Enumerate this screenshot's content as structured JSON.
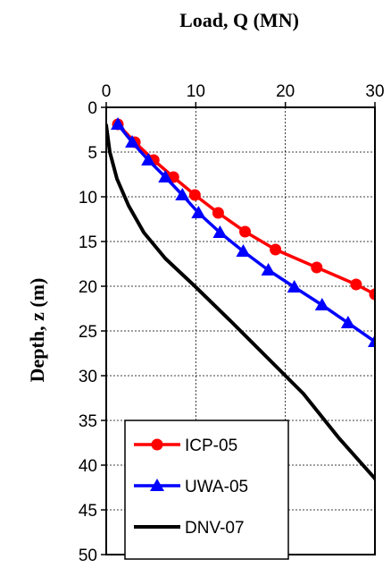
{
  "chart_data": {
    "type": "line",
    "title": "Load, Q (MN)",
    "xlabel": "",
    "ylabel": "Depth, z (m)",
    "x_axis_position": "top",
    "y_axis_reversed": true,
    "xlim": [
      0,
      30
    ],
    "ylim": [
      0,
      50
    ],
    "x_ticks": [
      0,
      10,
      20,
      30
    ],
    "y_ticks": [
      0,
      5,
      10,
      15,
      20,
      25,
      30,
      35,
      40,
      45,
      50
    ],
    "grid": true,
    "legend_position": "bottom-left",
    "series": [
      {
        "name": "ICP-05",
        "color": "#ff0000",
        "marker": "circle",
        "points": [
          [
            1.3,
            1.9
          ],
          [
            3.2,
            3.9
          ],
          [
            5.3,
            5.9
          ],
          [
            7.5,
            7.8
          ],
          [
            9.9,
            9.8
          ],
          [
            12.5,
            11.8
          ],
          [
            15.5,
            13.9
          ],
          [
            18.9,
            15.9
          ],
          [
            23.5,
            17.9
          ],
          [
            27.9,
            19.8
          ],
          [
            30.0,
            20.9
          ]
        ]
      },
      {
        "name": "UWA-05",
        "color": "#0000ff",
        "marker": "triangle",
        "points": [
          [
            1.3,
            1.9
          ],
          [
            2.9,
            3.9
          ],
          [
            4.7,
            5.9
          ],
          [
            6.6,
            7.8
          ],
          [
            8.5,
            9.8
          ],
          [
            10.3,
            11.8
          ],
          [
            12.7,
            14.0
          ],
          [
            15.3,
            16.1
          ],
          [
            18.1,
            18.2
          ],
          [
            21.0,
            20.1
          ],
          [
            24.1,
            22.1
          ],
          [
            27.0,
            24.1
          ],
          [
            30.0,
            26.2
          ]
        ]
      },
      {
        "name": "DNV-07",
        "color": "#000000",
        "marker": "none",
        "points": [
          [
            0.0,
            2.0
          ],
          [
            0.4,
            5.0
          ],
          [
            1.2,
            8.0
          ],
          [
            2.5,
            11.0
          ],
          [
            4.2,
            14.0
          ],
          [
            6.6,
            16.9
          ],
          [
            9.9,
            20.0
          ],
          [
            14.0,
            24.0
          ],
          [
            18.0,
            28.0
          ],
          [
            22.0,
            32.0
          ],
          [
            26.0,
            37.0
          ],
          [
            30.0,
            41.5
          ],
          [
            31.0,
            43.0
          ]
        ]
      }
    ]
  }
}
